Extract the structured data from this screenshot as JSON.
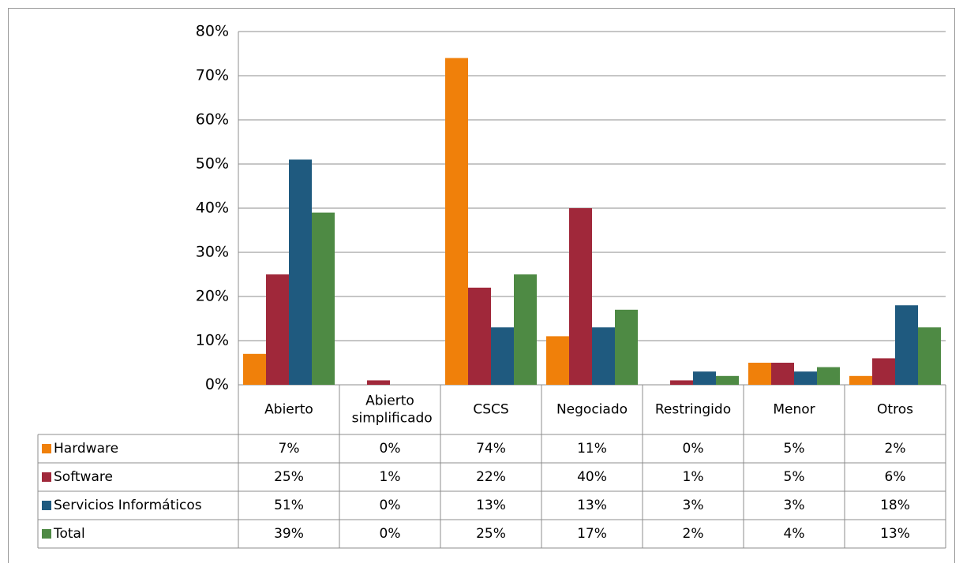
{
  "chart_data": {
    "type": "bar",
    "categories": [
      "Abierto",
      "Abierto simplificado",
      "CSCS",
      "Negociado",
      "Restringido",
      "Menor",
      "Otros"
    ],
    "series": [
      {
        "name": "Hardware",
        "color": "#f0800a",
        "values": [
          7,
          0,
          74,
          11,
          0,
          5,
          2
        ],
        "value_labels": [
          "7%",
          "0%",
          "74%",
          "11%",
          "0%",
          "5%",
          "2%"
        ]
      },
      {
        "name": "Software",
        "color": "#a0283a",
        "values": [
          25,
          1,
          22,
          40,
          1,
          5,
          6
        ],
        "value_labels": [
          "25%",
          "1%",
          "22%",
          "40%",
          "1%",
          "5%",
          "6%"
        ]
      },
      {
        "name": "Servicios Informáticos",
        "color": "#1f5a7f",
        "values": [
          51,
          0,
          13,
          13,
          3,
          3,
          18
        ],
        "value_labels": [
          "51%",
          "0%",
          "13%",
          "13%",
          "3%",
          "3%",
          "18%"
        ]
      },
      {
        "name": "Total",
        "color": "#4e8a44",
        "values": [
          39,
          0,
          25,
          17,
          2,
          4,
          13
        ],
        "value_labels": [
          "39%",
          "0%",
          "25%",
          "17%",
          "2%",
          "4%",
          "13%"
        ]
      }
    ],
    "ylim": [
      0,
      80
    ],
    "yticks": [
      {
        "value": 0,
        "label": "0%"
      },
      {
        "value": 10,
        "label": "10%"
      },
      {
        "value": 20,
        "label": "20%"
      },
      {
        "value": 30,
        "label": "30%"
      },
      {
        "value": 40,
        "label": "40%"
      },
      {
        "value": 50,
        "label": "50%"
      },
      {
        "value": 60,
        "label": "60%"
      },
      {
        "value": 70,
        "label": "70%"
      },
      {
        "value": 80,
        "label": "80%"
      }
    ],
    "grid": true
  }
}
